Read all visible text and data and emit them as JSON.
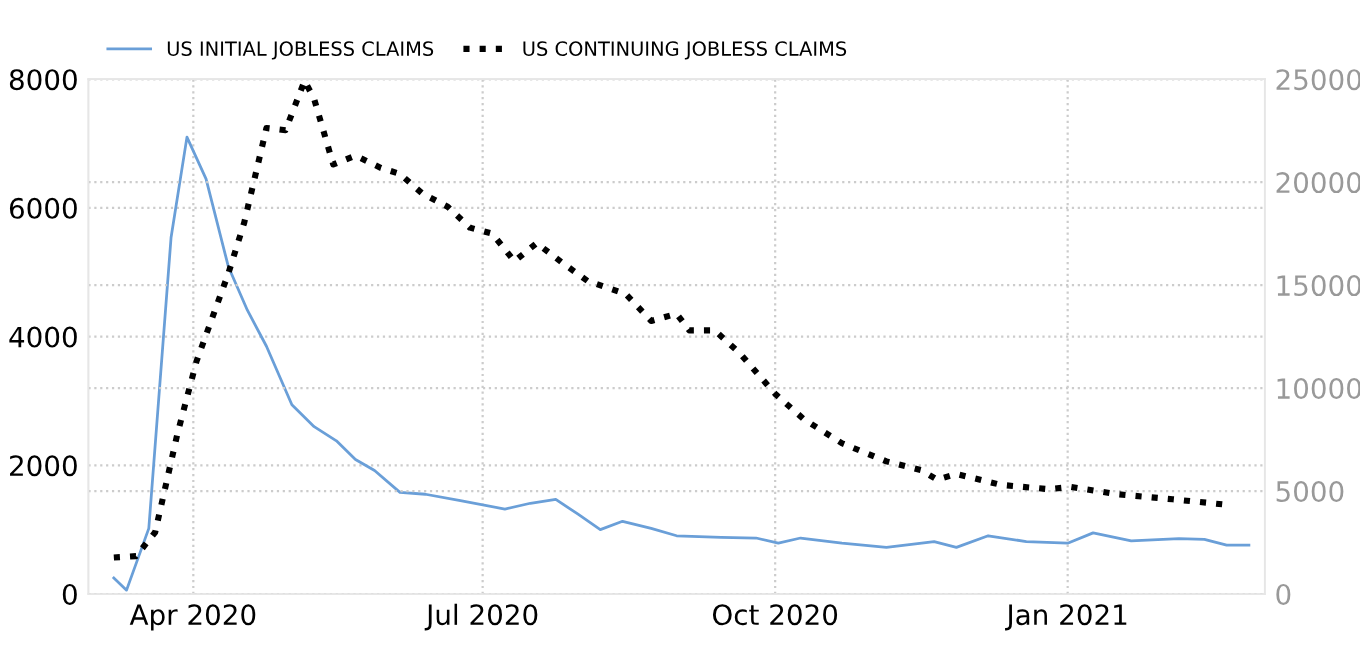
{
  "chart_data": {
    "type": "line",
    "grid": true,
    "legend": "top left",
    "tick_labels": "xy",
    "xlim": [
      "2020-02-28",
      "2021-03-04"
    ],
    "xticks": [
      {
        "value": "2020-04-01",
        "label": "Apr 2020"
      },
      {
        "value": "2020-07-01",
        "label": "Jul 2020"
      },
      {
        "value": "2020-10-01",
        "label": "Oct 2020"
      },
      {
        "value": "2021-01-01",
        "label": "Jan 2021"
      }
    ],
    "ylim": [
      0,
      8000
    ],
    "yticks": [
      0,
      2000,
      4000,
      6000,
      8000
    ],
    "y2lim": [
      0,
      25000
    ],
    "y2ticks": [
      0,
      5000,
      10000,
      15000,
      20000,
      25000
    ],
    "series": [
      {
        "name": "US INITIAL JOBLESS CLAIMS",
        "color": "#6a9fd8",
        "line_style": "solid",
        "x": [
          "2020-03-07",
          "2020-03-11",
          "2020-03-18",
          "2020-03-25",
          "2020-03-30",
          "2020-04-05",
          "2020-04-12",
          "2020-04-18",
          "2020-04-24",
          "2020-05-02",
          "2020-05-09",
          "2020-05-16",
          "2020-05-22",
          "2020-05-28",
          "2020-06-05",
          "2020-06-13",
          "2020-06-24",
          "2020-07-08",
          "2020-07-16",
          "2020-07-24",
          "2020-07-31",
          "2020-08-07",
          "2020-08-14",
          "2020-08-23",
          "2020-08-31",
          "2020-09-14",
          "2020-09-25",
          "2020-10-02",
          "2020-10-09",
          "2020-10-22",
          "2020-11-05",
          "2020-11-20",
          "2020-11-27",
          "2020-12-07",
          "2020-12-19",
          "2021-01-01",
          "2021-01-09",
          "2021-01-21",
          "2021-02-05",
          "2021-02-13",
          "2021-02-20",
          "2021-02-27"
        ],
        "values": [
          250,
          60,
          1020,
          5540,
          7100,
          6450,
          5090,
          4410,
          3850,
          2940,
          2600,
          2380,
          2090,
          1920,
          1580,
          1550,
          1450,
          1320,
          1410,
          1470,
          1240,
          1000,
          1130,
          1020,
          905,
          880,
          870,
          790,
          870,
          790,
          725,
          815,
          725,
          905,
          815,
          790,
          950,
          825,
          860,
          850,
          760,
          760
        ]
      },
      {
        "name": "US CONTINUING JOBLESS CLAIMS",
        "color": "#000000",
        "line_style": "dotted",
        "axis": "y2",
        "x": [
          "2020-03-07",
          "2020-03-14",
          "2020-03-20",
          "2020-03-27",
          "2020-04-02",
          "2020-04-12",
          "2020-04-17",
          "2020-04-24",
          "2020-04-30",
          "2020-05-06",
          "2020-05-09",
          "2020-05-15",
          "2020-05-22",
          "2020-05-30",
          "2020-06-05",
          "2020-06-12",
          "2020-06-20",
          "2020-06-27",
          "2020-07-04",
          "2020-07-11",
          "2020-07-18",
          "2020-07-26",
          "2020-08-03",
          "2020-08-15",
          "2020-08-23",
          "2020-08-31",
          "2020-09-04",
          "2020-09-12",
          "2020-09-20",
          "2020-10-01",
          "2020-10-10",
          "2020-10-22",
          "2020-11-05",
          "2020-11-16",
          "2020-11-21",
          "2020-11-27",
          "2020-12-11",
          "2020-12-26",
          "2021-01-02",
          "2021-01-17",
          "2021-02-03",
          "2021-02-19"
        ],
        "values": [
          1770,
          1840,
          3000,
          7780,
          11300,
          15560,
          18030,
          22630,
          22520,
          24930,
          24040,
          20860,
          21290,
          20690,
          20400,
          19450,
          18810,
          17790,
          17500,
          16160,
          17040,
          16090,
          15200,
          14570,
          13260,
          13610,
          12800,
          12800,
          11670,
          9720,
          8490,
          7320,
          6440,
          6010,
          5550,
          5830,
          5300,
          5090,
          5200,
          4840,
          4600,
          4350
        ]
      }
    ]
  }
}
